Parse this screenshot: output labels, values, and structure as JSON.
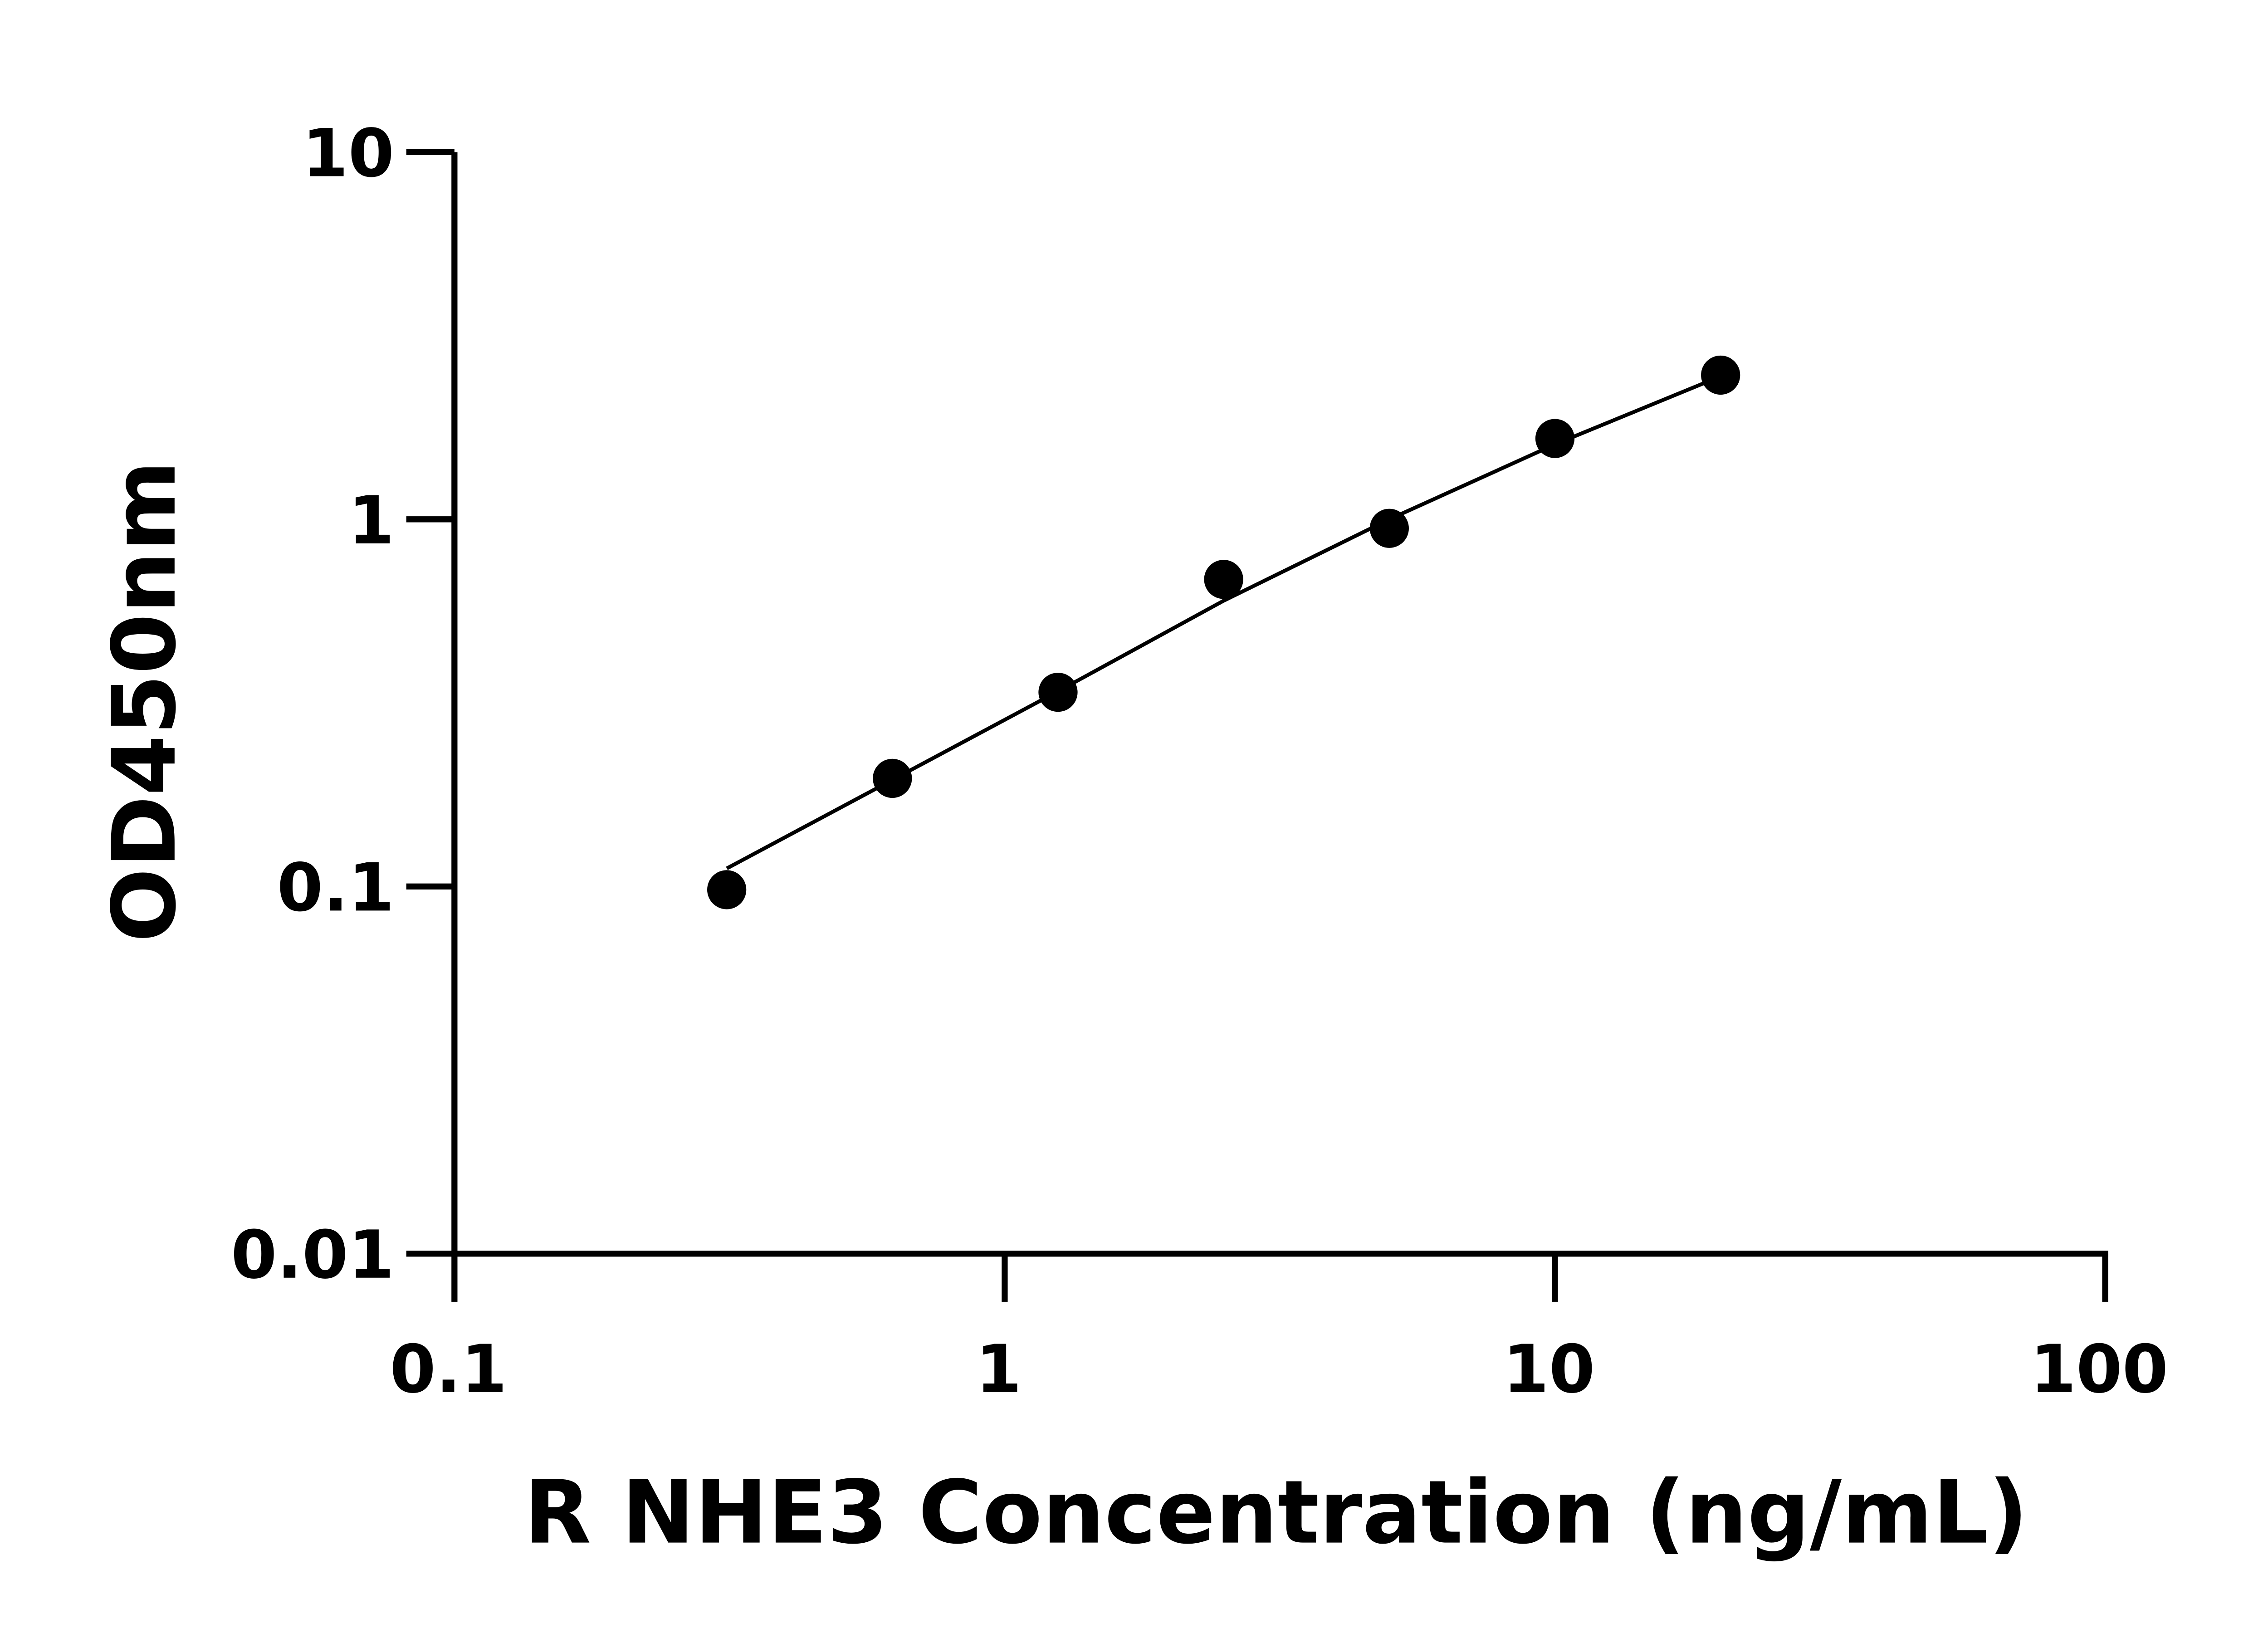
{
  "chart_data": {
    "type": "scatter",
    "title": "",
    "xlabel": "R NHE3 Concentration (ng/mL)",
    "ylabel": "OD450nm",
    "x_scale": "log",
    "y_scale": "log",
    "xlim": [
      0.1,
      100
    ],
    "ylim": [
      0.01,
      10
    ],
    "x_ticks": [
      "0.1",
      "1",
      "10",
      "100"
    ],
    "y_ticks": [
      "0.01",
      "0.1",
      "1",
      "10"
    ],
    "x_tick_values": [
      0.1,
      1,
      10,
      100
    ],
    "y_tick_values": [
      0.01,
      0.1,
      1,
      10
    ],
    "grid": false,
    "legend": "none",
    "series": [
      {
        "x": [
          0.3125,
          0.625,
          1.25,
          2.5,
          5,
          10,
          20
        ],
        "y": [
          0.098,
          0.197,
          0.338,
          0.686,
          0.945,
          1.66,
          2.47
        ]
      }
    ],
    "fit_curve": {
      "x": [
        0.3125,
        0.625,
        1.25,
        2.5,
        5,
        10,
        20
      ],
      "y": [
        0.112,
        0.195,
        0.34,
        0.6,
        1.0,
        1.6,
        2.45
      ]
    },
    "colors": {
      "marker": "#000000",
      "line": "#000000",
      "axis": "#000000"
    }
  }
}
